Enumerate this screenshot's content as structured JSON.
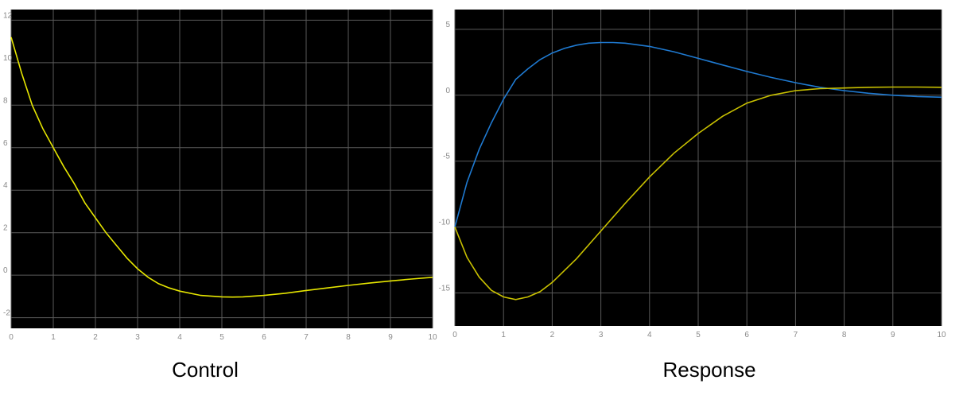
{
  "chart_data": [
    {
      "type": "line",
      "title": "",
      "caption": "Control",
      "xlim": [
        0,
        10
      ],
      "ylim": [
        -2.5,
        12.5
      ],
      "xticks": [
        "0",
        "1",
        "2",
        "3",
        "4",
        "5",
        "6",
        "7",
        "8",
        "9",
        "10"
      ],
      "yticks": [
        "-2",
        "0",
        "2",
        "4",
        "6",
        "8",
        "10",
        "12"
      ],
      "grid": true,
      "background": "#000000",
      "series": [
        {
          "color": "#e6e600",
          "x": [
            0,
            0.25,
            0.5,
            0.75,
            1,
            1.25,
            1.5,
            1.75,
            2,
            2.25,
            2.5,
            2.75,
            3,
            3.25,
            3.5,
            3.75,
            4,
            4.5,
            5,
            5.25,
            5.5,
            6,
            6.5,
            7,
            7.5,
            8,
            8.5,
            9,
            9.5,
            10
          ],
          "y": [
            11.2,
            9.5,
            8.0,
            6.9,
            6.0,
            5.1,
            4.3,
            3.4,
            2.7,
            2.0,
            1.4,
            0.8,
            0.3,
            -0.1,
            -0.4,
            -0.6,
            -0.75,
            -0.95,
            -1.02,
            -1.03,
            -1.02,
            -0.95,
            -0.85,
            -0.72,
            -0.6,
            -0.48,
            -0.37,
            -0.27,
            -0.18,
            -0.1
          ]
        }
      ]
    },
    {
      "type": "line",
      "title": "",
      "caption": "Response",
      "xlim": [
        0,
        10
      ],
      "ylim": [
        -17.5,
        6.5
      ],
      "xticks": [
        "0",
        "1",
        "2",
        "3",
        "4",
        "5",
        "6",
        "7",
        "8",
        "9",
        "10"
      ],
      "yticks": [
        "5",
        "0",
        "-5",
        "-10",
        "-15"
      ],
      "grid": true,
      "background": "#000000",
      "series": [
        {
          "color": "#1f7ad1",
          "x": [
            0,
            0.25,
            0.5,
            0.75,
            1,
            1.25,
            1.5,
            1.75,
            2,
            2.25,
            2.5,
            2.75,
            3,
            3.25,
            3.5,
            4,
            4.5,
            5,
            5.5,
            6,
            6.5,
            7,
            7.5,
            8,
            8.5,
            9,
            9.5,
            10
          ],
          "y": [
            -10,
            -6.6,
            -4.1,
            -2.1,
            -0.3,
            1.2,
            2.0,
            2.7,
            3.2,
            3.55,
            3.8,
            3.95,
            4.0,
            4.0,
            3.95,
            3.7,
            3.3,
            2.8,
            2.3,
            1.8,
            1.35,
            0.95,
            0.6,
            0.35,
            0.15,
            0.0,
            -0.1,
            -0.15
          ]
        },
        {
          "color": "#c8c000",
          "x": [
            0,
            0.25,
            0.5,
            0.75,
            1,
            1.25,
            1.5,
            1.75,
            2,
            2.5,
            3,
            3.5,
            4,
            4.5,
            5,
            5.5,
            6,
            6.5,
            7,
            7.5,
            8,
            8.5,
            9,
            9.5,
            10
          ],
          "y": [
            -10,
            -12.3,
            -13.8,
            -14.8,
            -15.3,
            -15.5,
            -15.3,
            -14.9,
            -14.2,
            -12.4,
            -10.3,
            -8.2,
            -6.2,
            -4.4,
            -2.9,
            -1.6,
            -0.6,
            0.0,
            0.35,
            0.5,
            0.55,
            0.6,
            0.62,
            0.62,
            0.6
          ]
        }
      ]
    }
  ]
}
